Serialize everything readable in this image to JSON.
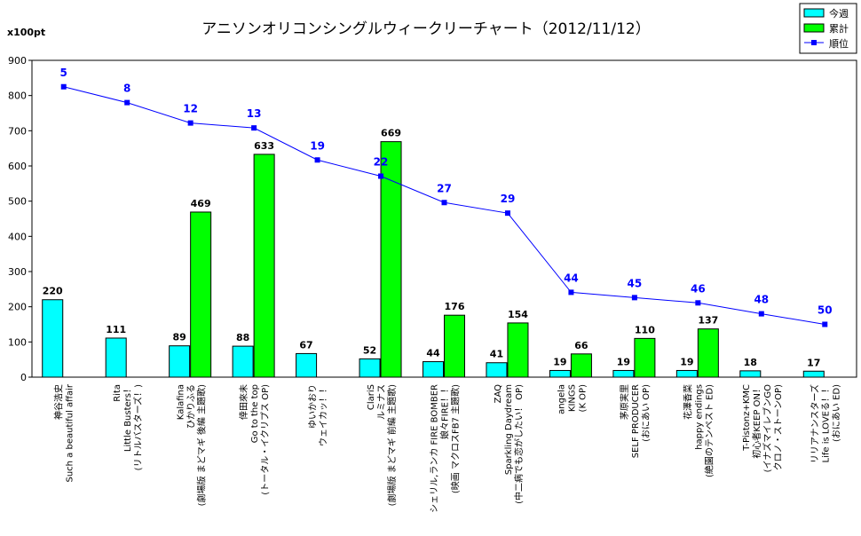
{
  "chart_data": {
    "type": "bar",
    "title": "アニソンオリコンシングルウィークリーチャート（2012/11/12）",
    "unit_label": "x100pt",
    "ylim": [
      0,
      900
    ],
    "yticks": [
      "0",
      "100",
      "200",
      "300",
      "400",
      "500",
      "600",
      "700",
      "800",
      "900"
    ],
    "legend_position": "top-right",
    "categories": [
      [
        "神谷浩史",
        "Such a beautiful affair"
      ],
      [
        "Rita",
        "Little Busters！",
        "(リトルバスターズ！)"
      ],
      [
        "Kalafina",
        "ひかりふる",
        "(劇場版 まどマギ 後編 主題歌)"
      ],
      [
        "倖田來未",
        "Go to the top",
        "(トータル・イクリプス OP)"
      ],
      [
        "ゆいかおり",
        "ウェイカッ！！"
      ],
      [
        "ClariS",
        "ルミナス",
        "(劇場版 まどマギ 前編 主題歌)"
      ],
      [
        "シェリル,ランカ FIRE BOMBER",
        "娘々FIRE！！",
        "(映画 マクロスFB7 主題歌)"
      ],
      [
        "ZAQ",
        "Sparkling Daydream",
        "(中二病でも恋がしたい！ OP)"
      ],
      [
        "angela",
        "KINGS",
        "(K OP)"
      ],
      [
        "茅原実里",
        "SELF PRODUCER",
        "(おにあい OP)"
      ],
      [
        "花澤香菜",
        "happy endings",
        "(絶園のテンペスト ED)"
      ],
      [
        "T-Pistonz+KMC",
        "初心者KEEP ON！",
        "(イナズマイレブンGO",
        "クロノ・ストーンOP)"
      ],
      [
        "リリアナンスターズ",
        "Life is LOVEる！！",
        "(おにあい ED)"
      ]
    ],
    "series": [
      {
        "name": "今週",
        "type": "bar",
        "color": "#00ffff",
        "values": [
          220,
          111,
          89,
          88,
          67,
          52,
          44,
          41,
          19,
          19,
          19,
          18,
          17
        ],
        "labels": [
          "220",
          "111",
          "89",
          "88",
          "67",
          "52",
          "44",
          "41",
          "19",
          "19",
          "19",
          "18",
          "17"
        ]
      },
      {
        "name": "累計",
        "type": "bar",
        "color": "#00ff00",
        "values": [
          null,
          null,
          469,
          633,
          null,
          669,
          176,
          154,
          66,
          110,
          137,
          null,
          null
        ],
        "labels": [
          "",
          "",
          "469",
          "633",
          "",
          "669",
          "176",
          "154",
          "66",
          "110",
          "137",
          "",
          ""
        ]
      },
      {
        "name": "順位",
        "type": "line",
        "color": "#0000ff",
        "values": [
          825,
          780,
          722,
          708,
          617,
          571,
          496,
          466,
          241,
          226,
          211,
          180,
          150
        ],
        "labels": [
          "5",
          "8",
          "12",
          "13",
          "19",
          "22",
          "27",
          "29",
          "44",
          "45",
          "46",
          "48",
          "50"
        ]
      }
    ]
  }
}
